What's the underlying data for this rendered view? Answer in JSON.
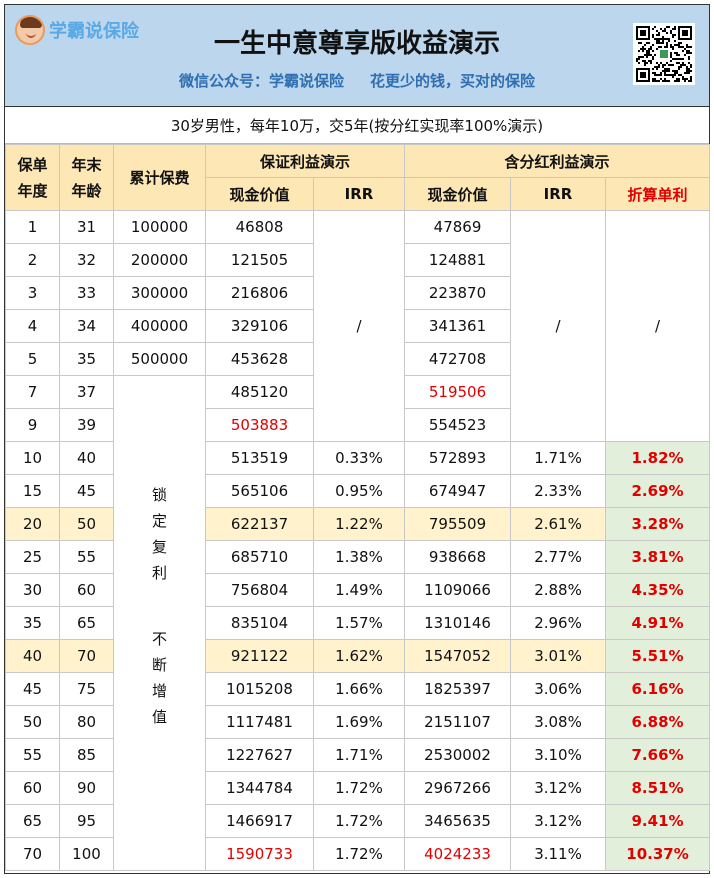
{
  "header": {
    "logo_text": "学霸说保险",
    "title": "一生中意尊享版收益演示",
    "subtitle_left": "微信公众号：学霸说保险",
    "subtitle_right": "花更少的钱，买对的保险"
  },
  "description": "30岁男性，每年10万，交5年(按分红实现率100%演示)",
  "table": {
    "headers": {
      "policy_year": "保单年度",
      "age": "年末年龄",
      "cumulative_premium": "累计保费",
      "guaranteed_group": "保证利益演示",
      "dividend_group": "含分红利益演示",
      "cash_value": "现金价值",
      "irr": "IRR",
      "simple_rate": "折算单利"
    },
    "slash": "/",
    "lock_text_1": "锁定复利",
    "lock_text_2": "不断增值",
    "rows": [
      {
        "year": "1",
        "age": "31",
        "premium": "100000",
        "g_cash": "46808",
        "g_irr": "",
        "d_cash": "47869",
        "d_irr": "",
        "simple": ""
      },
      {
        "year": "2",
        "age": "32",
        "premium": "200000",
        "g_cash": "121505",
        "g_irr": "",
        "d_cash": "124881",
        "d_irr": "",
        "simple": ""
      },
      {
        "year": "3",
        "age": "33",
        "premium": "300000",
        "g_cash": "216806",
        "g_irr": "",
        "d_cash": "223870",
        "d_irr": "",
        "simple": ""
      },
      {
        "year": "4",
        "age": "34",
        "premium": "400000",
        "g_cash": "329106",
        "g_irr": "",
        "d_cash": "341361",
        "d_irr": "",
        "simple": ""
      },
      {
        "year": "5",
        "age": "35",
        "premium": "500000",
        "g_cash": "453628",
        "g_irr": "",
        "d_cash": "472708",
        "d_irr": "",
        "simple": ""
      },
      {
        "year": "7",
        "age": "37",
        "premium": "",
        "g_cash": "485120",
        "g_irr": "",
        "d_cash": "519506",
        "d_irr": "",
        "simple": ""
      },
      {
        "year": "9",
        "age": "39",
        "premium": "",
        "g_cash": "503883",
        "g_irr": "",
        "d_cash": "554523",
        "d_irr": "",
        "simple": ""
      },
      {
        "year": "10",
        "age": "40",
        "premium": "",
        "g_cash": "513519",
        "g_irr": "0.33%",
        "d_cash": "572893",
        "d_irr": "1.71%",
        "simple": "1.82%"
      },
      {
        "year": "15",
        "age": "45",
        "premium": "",
        "g_cash": "565106",
        "g_irr": "0.95%",
        "d_cash": "674947",
        "d_irr": "2.33%",
        "simple": "2.69%"
      },
      {
        "year": "20",
        "age": "50",
        "premium": "",
        "g_cash": "622137",
        "g_irr": "1.22%",
        "d_cash": "795509",
        "d_irr": "2.61%",
        "simple": "3.28%"
      },
      {
        "year": "25",
        "age": "55",
        "premium": "",
        "g_cash": "685710",
        "g_irr": "1.38%",
        "d_cash": "938668",
        "d_irr": "2.77%",
        "simple": "3.81%"
      },
      {
        "year": "30",
        "age": "60",
        "premium": "",
        "g_cash": "756804",
        "g_irr": "1.49%",
        "d_cash": "1109066",
        "d_irr": "2.88%",
        "simple": "4.35%"
      },
      {
        "year": "35",
        "age": "65",
        "premium": "",
        "g_cash": "835104",
        "g_irr": "1.57%",
        "d_cash": "1310146",
        "d_irr": "2.96%",
        "simple": "4.91%"
      },
      {
        "year": "40",
        "age": "70",
        "premium": "",
        "g_cash": "921122",
        "g_irr": "1.62%",
        "d_cash": "1547052",
        "d_irr": "3.01%",
        "simple": "5.51%"
      },
      {
        "year": "45",
        "age": "75",
        "premium": "",
        "g_cash": "1015208",
        "g_irr": "1.66%",
        "d_cash": "1825397",
        "d_irr": "3.06%",
        "simple": "6.16%"
      },
      {
        "year": "50",
        "age": "80",
        "premium": "",
        "g_cash": "1117481",
        "g_irr": "1.69%",
        "d_cash": "2151107",
        "d_irr": "3.08%",
        "simple": "6.88%"
      },
      {
        "year": "55",
        "age": "85",
        "premium": "",
        "g_cash": "1227627",
        "g_irr": "1.71%",
        "d_cash": "2530002",
        "d_irr": "3.10%",
        "simple": "7.66%"
      },
      {
        "year": "60",
        "age": "90",
        "premium": "",
        "g_cash": "1344784",
        "g_irr": "1.72%",
        "d_cash": "2967266",
        "d_irr": "3.12%",
        "simple": "8.51%"
      },
      {
        "year": "65",
        "age": "95",
        "premium": "",
        "g_cash": "1466917",
        "g_irr": "1.72%",
        "d_cash": "3465635",
        "d_irr": "3.12%",
        "simple": "9.41%"
      },
      {
        "year": "70",
        "age": "100",
        "premium": "",
        "g_cash": "1590733",
        "g_irr": "1.72%",
        "d_cash": "4024233",
        "d_irr": "3.11%",
        "simple": "10.37%"
      }
    ],
    "highlighted_years": [
      "20",
      "40"
    ],
    "red_cells": [
      "9.g_cash",
      "7.d_cash",
      "70.g_cash",
      "70.d_cash"
    ]
  },
  "colors": {
    "header_bg": "#bcd6ee",
    "column_header_bg": "#fde7b5",
    "highlight_row_bg": "#fff2cc",
    "simple_rate_bg": "#e2efda",
    "accent_red": "#e00000",
    "subtitle_blue": "#2f6fb1"
  },
  "icons": [
    "avatar-logo-icon",
    "qr-code-icon"
  ]
}
